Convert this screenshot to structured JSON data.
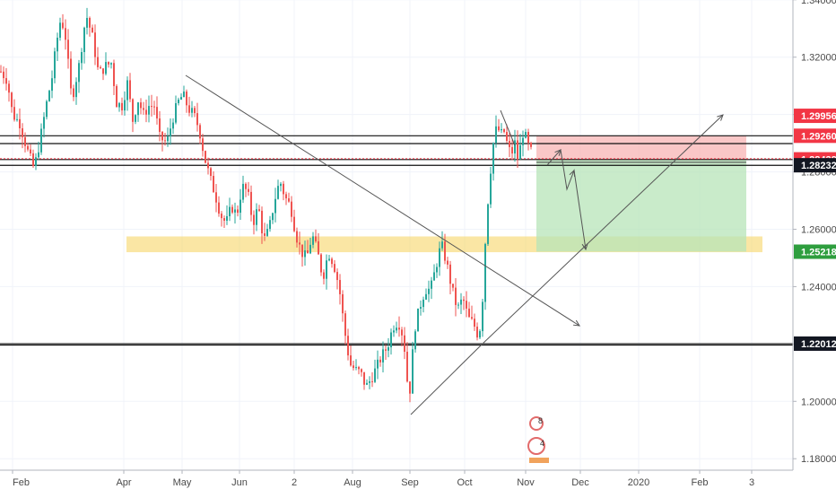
{
  "chart_data": {
    "type": "candlestick",
    "ylim": [
      1.176,
      1.344
    ],
    "y_ticks": [
      "1.34000",
      "1.32000",
      "1.30000",
      "1.28000",
      "1.26000",
      "1.24000",
      "1.22000",
      "1.20000",
      "1.18000"
    ],
    "x_labels": [
      "Feb",
      "Apr",
      "May",
      "Jun",
      "2",
      "Aug",
      "Sep",
      "Oct",
      "Nov",
      "Dec",
      "2020",
      "Feb",
      "3"
    ],
    "bull_color": "#26a69a",
    "bear_color": "#ef5350",
    "horizontal_levels": [
      1.2926,
      1.2905,
      1.2843,
      1.2823,
      1.2201,
      1.219
    ],
    "support_zone": [
      1.252,
      1.2575
    ],
    "short_position": {
      "entry": 1.2843,
      "stop": 1.2926,
      "target": 1.2522,
      "stop_color": "#f8b4b4",
      "target_color": "#b7e4b8"
    },
    "price_labels": [
      {
        "text": "1.29956",
        "bg": "#f23645",
        "value": 1.29956
      },
      {
        "text": "1.29260",
        "bg": "#f23645",
        "value": 1.2926
      },
      {
        "text": "1.28438",
        "bg": "#f23645",
        "value": 1.28438
      },
      {
        "text": "1.28232",
        "bg": "#131722",
        "value": 1.28232
      },
      {
        "text": "1.25218",
        "bg": "#2e9e3e",
        "value": 1.25218
      },
      {
        "text": "1.22012",
        "bg": "#131722",
        "value": 1.22012
      }
    ],
    "logo_numbers": [
      "8",
      "4"
    ]
  }
}
